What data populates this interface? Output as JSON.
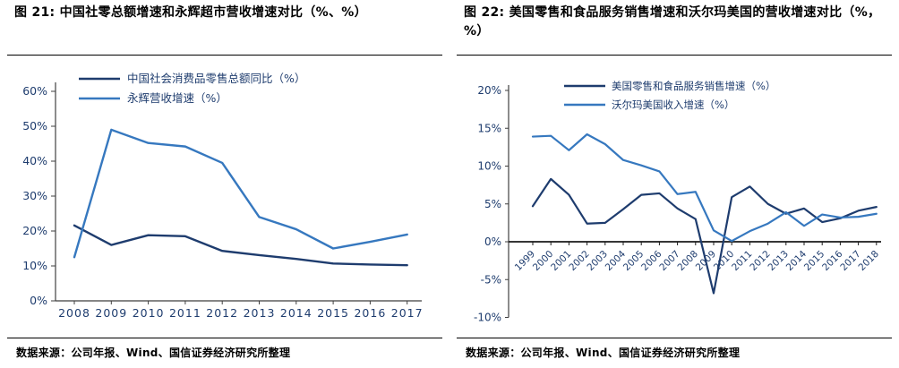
{
  "colors": {
    "navy": "#1e3c6e",
    "blue": "#3678bf",
    "axis_line": "#3f3f3f",
    "axis_text": "#1e3c6e",
    "title_text": "#000000"
  },
  "chart_data": [
    {
      "panel": "left",
      "type": "line",
      "title": "图 21: 中国社零总额增速和永辉超市营收增速对比（%、%）",
      "source": "数据来源：公司年报、Wind、国信证券经济研究所整理",
      "categories": [
        "2008",
        "2009",
        "2010",
        "2011",
        "2012",
        "2013",
        "2014",
        "2015",
        "2016",
        "2017"
      ],
      "series": [
        {
          "name": "中国社会消费品零售总额同比（%）",
          "color": "#1e3c6e",
          "values": [
            21.6,
            16.0,
            18.8,
            18.5,
            14.3,
            13.1,
            12.0,
            10.7,
            10.4,
            10.2
          ]
        },
        {
          "name": "永辉营收增速（%）",
          "color": "#3678bf",
          "values": [
            12.5,
            49.0,
            45.2,
            44.2,
            39.5,
            24.0,
            20.5,
            15.0,
            16.9,
            19.0
          ]
        }
      ],
      "xlabel": "",
      "ylabel": "",
      "ylim": [
        0,
        60
      ],
      "ytick_step": 10,
      "ytick_suffix": "%",
      "grid": false,
      "legend_position": "top",
      "x_labels_rotated": false
    },
    {
      "panel": "right",
      "type": "line",
      "title": "图 22: 美国零售和食品服务销售增速和沃尔玛美国的营收增速对比（%，%）",
      "source": "数据来源：公司年报、Wind、国信证券经济研究所整理",
      "categories": [
        "1999",
        "2000",
        "2001",
        "2002",
        "2003",
        "2004",
        "2005",
        "2006",
        "2007",
        "2008",
        "2009",
        "2010",
        "2011",
        "2012",
        "2013",
        "2014",
        "2015",
        "2016",
        "2017",
        "2018"
      ],
      "series": [
        {
          "name": "美国零售和食品服务销售增速（%）",
          "color": "#1e3c6e",
          "values": [
            4.7,
            8.3,
            6.2,
            2.4,
            2.5,
            4.3,
            6.2,
            6.4,
            4.4,
            3.0,
            -6.8,
            5.9,
            7.3,
            5.0,
            3.7,
            4.4,
            2.6,
            3.1,
            4.1,
            4.6
          ]
        },
        {
          "name": "沃尔玛美国收入增速（%）",
          "color": "#3678bf",
          "values": [
            13.9,
            14.0,
            12.1,
            14.2,
            12.9,
            10.8,
            10.1,
            9.3,
            6.3,
            6.6,
            1.5,
            0.1,
            1.4,
            2.4,
            3.9,
            2.1,
            3.6,
            3.2,
            3.3,
            3.7
          ]
        }
      ],
      "xlabel": "",
      "ylabel": "",
      "ylim": [
        -10,
        20
      ],
      "ytick_step": 5,
      "ytick_suffix": "%",
      "grid": false,
      "legend_position": "top",
      "x_labels_rotated": true
    }
  ]
}
